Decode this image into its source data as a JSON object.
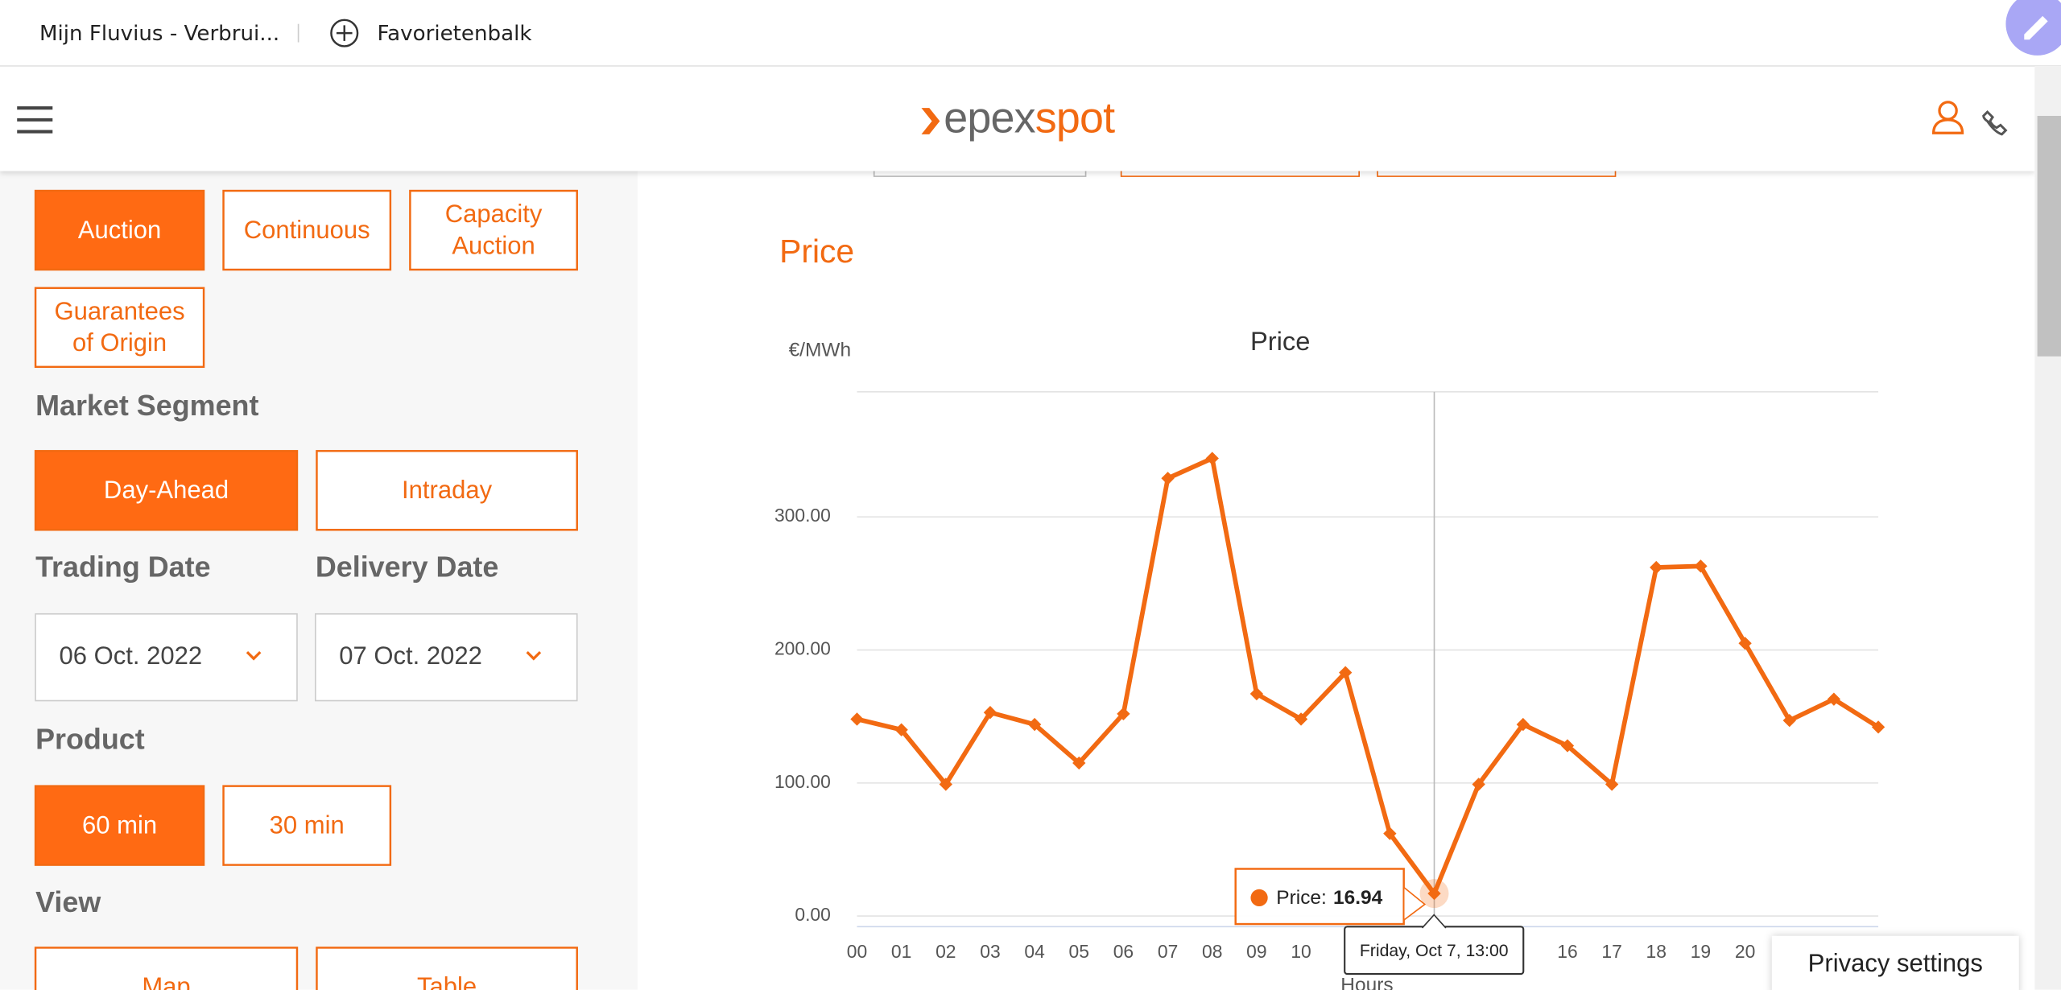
{
  "browser": {
    "tab": "Mijn Fluvius - Verbrui...",
    "favorites": "Favorietenbalk"
  },
  "header": {
    "logo_left": "epex",
    "logo_right": "spot"
  },
  "sidebar": {
    "buttons": [
      {
        "lines": [
          "Auction"
        ],
        "active": true
      },
      {
        "lines": [
          "Continuous"
        ],
        "active": false
      },
      {
        "lines": [
          "Capacity",
          "Auction"
        ],
        "active": false
      },
      {
        "lines": [
          "Guarantees",
          "of Origin"
        ],
        "active": false
      },
      {
        "lines": [
          "Day-Ahead"
        ],
        "active": true
      },
      {
        "lines": [
          "Intraday"
        ],
        "active": false
      },
      {
        "lines": [
          "60 min"
        ],
        "active": true
      },
      {
        "lines": [
          "30 min"
        ],
        "active": false
      },
      {
        "lines": [
          "Map"
        ],
        "active": false
      },
      {
        "lines": [
          "Table"
        ],
        "active": false
      }
    ],
    "labels": [
      "Market Segment",
      "Trading Date",
      "Delivery Date",
      "Product",
      "View"
    ],
    "dates": [
      "06 Oct. 2022",
      "07 Oct. 2022"
    ]
  },
  "section_title": "Price",
  "chart_data": {
    "type": "line",
    "title": "Price",
    "y_label": "€/MWh",
    "x_label": "Hours",
    "categories": [
      "00",
      "01",
      "02",
      "03",
      "04",
      "05",
      "06",
      "07",
      "08",
      "09",
      "10",
      null,
      null,
      null,
      null,
      null,
      "16",
      "17",
      "18",
      "19",
      "20",
      null,
      null,
      null
    ],
    "series": [
      {
        "name": "Price",
        "color": "#f26a12",
        "values": [
          148,
          140,
          99,
          153,
          144,
          115,
          152,
          329,
          344,
          167,
          148,
          183,
          62,
          16.94,
          99,
          144,
          128,
          99,
          262,
          263,
          205,
          147,
          163,
          142
        ]
      }
    ],
    "ylim": [
      -8,
      394
    ],
    "yticks": [
      {
        "value": 0,
        "label": "0.00"
      },
      {
        "value": 100,
        "label": "100.00"
      },
      {
        "value": 200,
        "label": "200.00"
      },
      {
        "value": 300,
        "label": "300.00"
      }
    ],
    "grid": true,
    "tooltip": {
      "index": 13,
      "label": "Price:",
      "header": "Friday, Oct 7, 13:00"
    }
  },
  "privacy": "Privacy settings"
}
